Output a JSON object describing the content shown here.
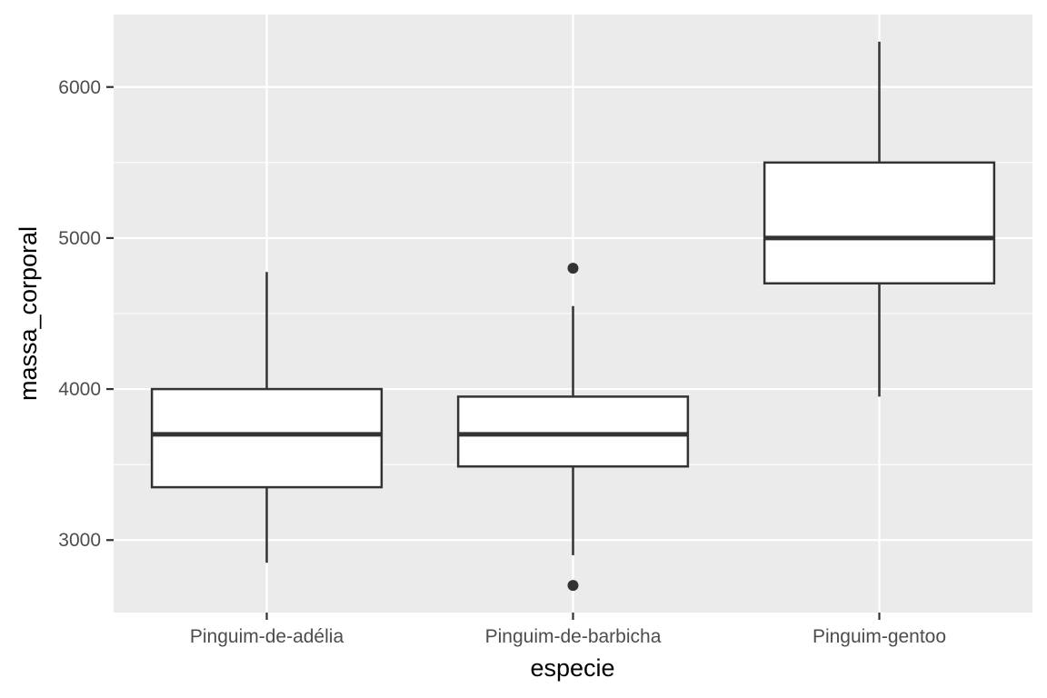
{
  "chart_data": {
    "type": "boxplot",
    "xlabel": "especie",
    "ylabel": "massa_corporal",
    "ylim": [
      2520,
      6480
    ],
    "y_ticks": [
      3000,
      4000,
      5000,
      6000
    ],
    "y_minor_ticks": [
      3500,
      4500,
      5500
    ],
    "grid": true,
    "categories": [
      "Pinguim-de-adélia",
      "Pinguim-de-barbicha",
      "Pinguim-gentoo"
    ],
    "boxes": [
      {
        "category": "Pinguim-de-adélia",
        "whisker_low": 2850,
        "q1": 3350,
        "median": 3700,
        "q3": 4000,
        "whisker_high": 4775,
        "outliers": []
      },
      {
        "category": "Pinguim-de-barbicha",
        "whisker_low": 2900,
        "q1": 3487.5,
        "median": 3700,
        "q3": 3950,
        "whisker_high": 4550,
        "outliers": [
          2700,
          4800
        ]
      },
      {
        "category": "Pinguim-gentoo",
        "whisker_low": 3950,
        "q1": 4700,
        "median": 5000,
        "q3": 5500,
        "whisker_high": 6300,
        "outliers": []
      }
    ],
    "colors": {
      "panel_background": "#ebebeb",
      "grid": "#ffffff",
      "box_fill": "#ffffff",
      "box_stroke": "#333333",
      "tick": "#333333"
    }
  }
}
